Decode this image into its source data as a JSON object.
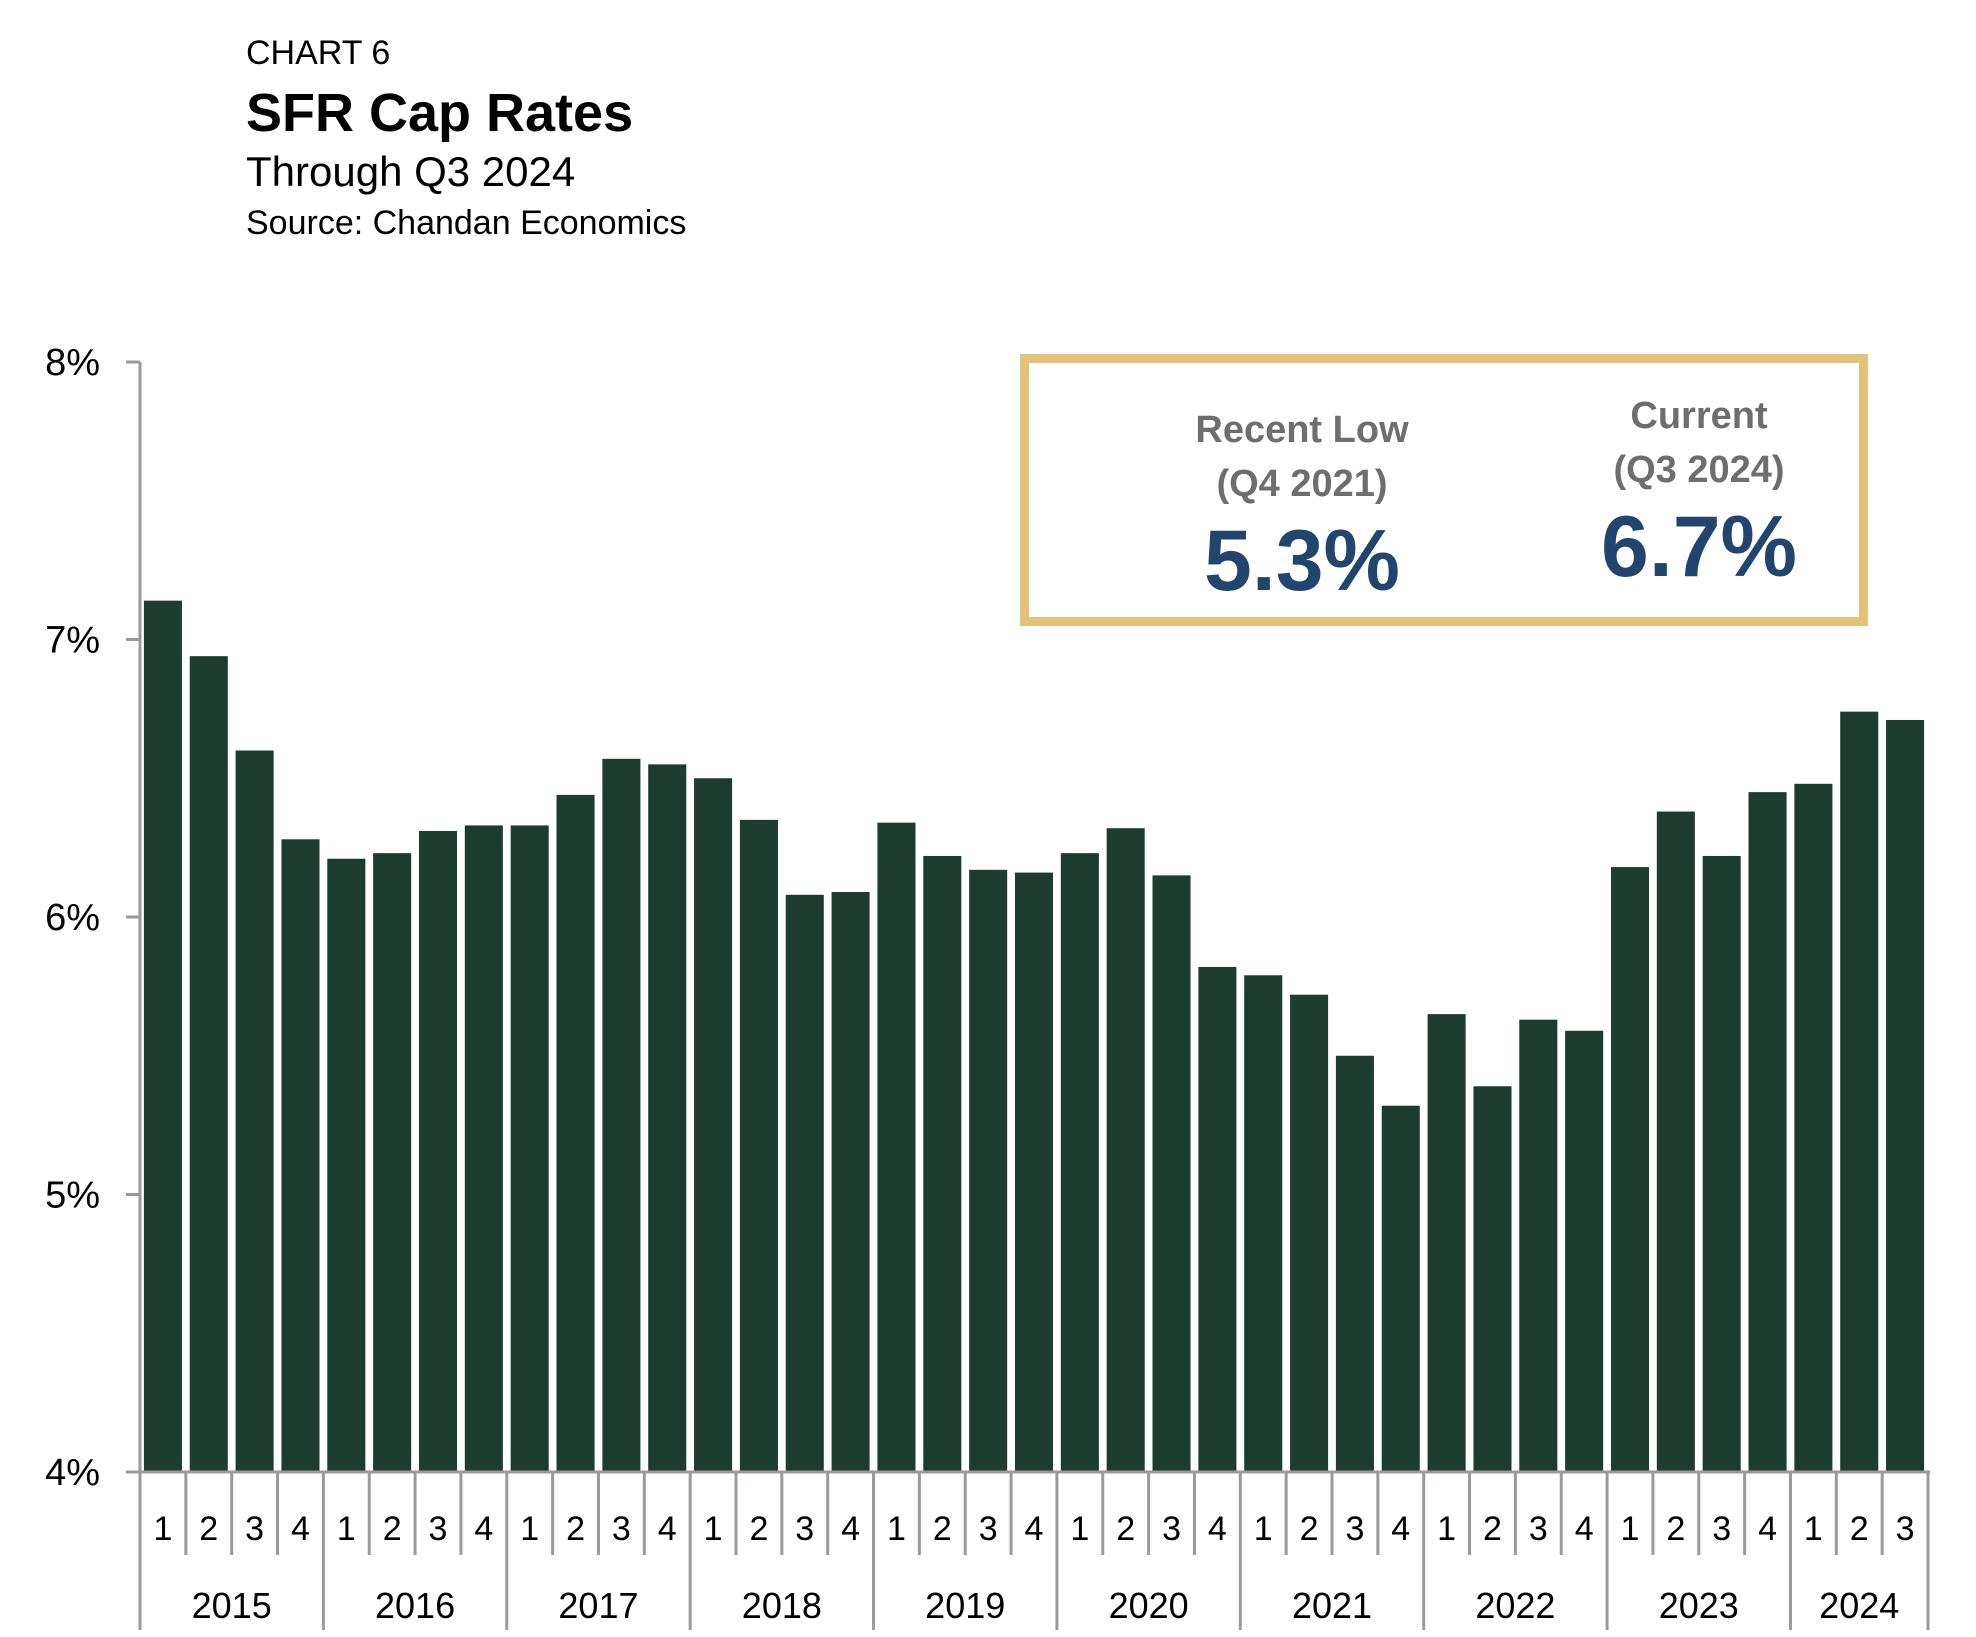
{
  "header": {
    "label": "CHART 6",
    "title": "SFR Cap Rates",
    "subtitle": "Through Q3 2024",
    "source": "Source: Chandan Economics"
  },
  "callout": {
    "low_caption_1": "Recent Low",
    "low_caption_2": "(Q4 2021)",
    "low_value": "5.3%",
    "current_caption_1": "Current",
    "current_caption_2": "(Q3 2024)",
    "current_value": "6.7%",
    "border_color": "#e5c27a",
    "value_color": "#22456e"
  },
  "chart_data": {
    "type": "bar",
    "bar_color": "#1d3c30",
    "ylim": [
      4,
      8
    ],
    "y_ticks": [
      4,
      5,
      6,
      7,
      8
    ],
    "y_tick_labels": [
      "4%",
      "5%",
      "6%",
      "7%",
      "8%"
    ],
    "years": [
      "2015",
      "2016",
      "2017",
      "2018",
      "2019",
      "2020",
      "2021",
      "2022",
      "2023",
      "2024"
    ],
    "categories": [
      {
        "year": "2015",
        "q": "1"
      },
      {
        "year": "2015",
        "q": "2"
      },
      {
        "year": "2015",
        "q": "3"
      },
      {
        "year": "2015",
        "q": "4"
      },
      {
        "year": "2016",
        "q": "1"
      },
      {
        "year": "2016",
        "q": "2"
      },
      {
        "year": "2016",
        "q": "3"
      },
      {
        "year": "2016",
        "q": "4"
      },
      {
        "year": "2017",
        "q": "1"
      },
      {
        "year": "2017",
        "q": "2"
      },
      {
        "year": "2017",
        "q": "3"
      },
      {
        "year": "2017",
        "q": "4"
      },
      {
        "year": "2018",
        "q": "1"
      },
      {
        "year": "2018",
        "q": "2"
      },
      {
        "year": "2018",
        "q": "3"
      },
      {
        "year": "2018",
        "q": "4"
      },
      {
        "year": "2019",
        "q": "1"
      },
      {
        "year": "2019",
        "q": "2"
      },
      {
        "year": "2019",
        "q": "3"
      },
      {
        "year": "2019",
        "q": "4"
      },
      {
        "year": "2020",
        "q": "1"
      },
      {
        "year": "2020",
        "q": "2"
      },
      {
        "year": "2020",
        "q": "3"
      },
      {
        "year": "2020",
        "q": "4"
      },
      {
        "year": "2021",
        "q": "1"
      },
      {
        "year": "2021",
        "q": "2"
      },
      {
        "year": "2021",
        "q": "3"
      },
      {
        "year": "2021",
        "q": "4"
      },
      {
        "year": "2022",
        "q": "1"
      },
      {
        "year": "2022",
        "q": "2"
      },
      {
        "year": "2022",
        "q": "3"
      },
      {
        "year": "2022",
        "q": "4"
      },
      {
        "year": "2023",
        "q": "1"
      },
      {
        "year": "2023",
        "q": "2"
      },
      {
        "year": "2023",
        "q": "3"
      },
      {
        "year": "2023",
        "q": "4"
      },
      {
        "year": "2024",
        "q": "1"
      },
      {
        "year": "2024",
        "q": "2"
      },
      {
        "year": "2024",
        "q": "3"
      }
    ],
    "values": [
      7.14,
      6.94,
      6.6,
      6.28,
      6.21,
      6.23,
      6.31,
      6.33,
      6.33,
      6.44,
      6.57,
      6.55,
      6.5,
      6.35,
      6.08,
      6.09,
      6.34,
      6.22,
      6.17,
      6.16,
      6.23,
      6.32,
      6.15,
      5.82,
      5.79,
      5.72,
      5.5,
      5.32,
      5.65,
      5.39,
      5.63,
      5.59,
      6.18,
      6.38,
      6.22,
      6.45,
      6.48,
      6.74,
      6.71
    ],
    "grid": false,
    "legend": "none"
  }
}
